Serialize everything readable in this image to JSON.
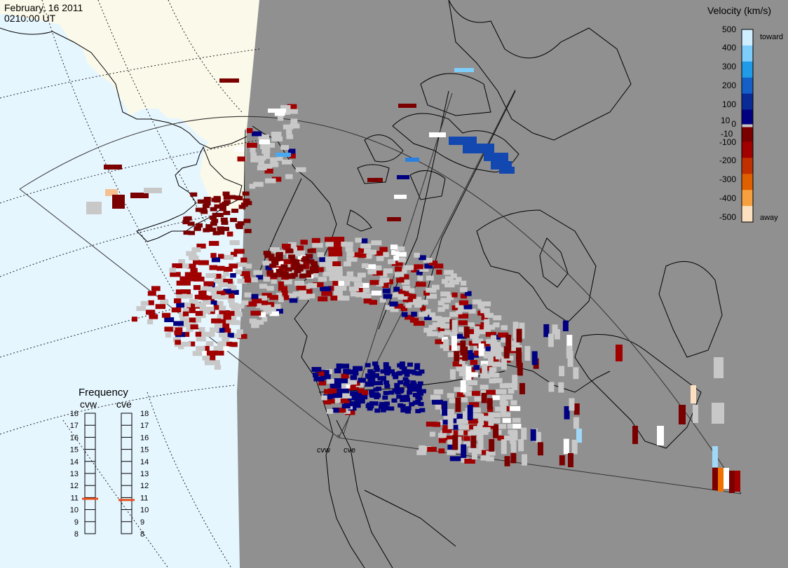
{
  "header": {
    "date": "February, 16 2011",
    "time": "0210:00 UT"
  },
  "stations": [
    "cvw",
    "cve"
  ],
  "velocity_scale": {
    "title": "Velocity (km/s)",
    "ticks": [
      "500",
      "400",
      "300",
      "200",
      "100",
      "10",
      "0",
      "-10",
      "-100",
      "-200",
      "-300",
      "-400",
      "-500"
    ],
    "toward_label": "toward",
    "away_label": "away",
    "colors": [
      "#cfeeff",
      "#7fcdfa",
      "#1f9be8",
      "#1560c8",
      "#0a2a96",
      "#000080",
      "#7a0000",
      "#a00000",
      "#c03000",
      "#e06000",
      "#f7a040",
      "#fde0c0"
    ],
    "ground_scatter_color": "#c8c8c8"
  },
  "frequency_panel": {
    "title": "Frequency",
    "columns": [
      {
        "station": "cvw",
        "selected_mhz": 10.9
      },
      {
        "station": "cve",
        "selected_mhz": 10.8
      }
    ],
    "ticks": [
      "18",
      "17",
      "16",
      "15",
      "14",
      "13",
      "12",
      "11",
      "10",
      "9",
      "8"
    ],
    "marker_color": "#e8501e"
  },
  "map_colors": {
    "day_ocean": "#e6f6ff",
    "day_land": "#fbf9e9",
    "night": "#909090",
    "coast": "#000000"
  }
}
